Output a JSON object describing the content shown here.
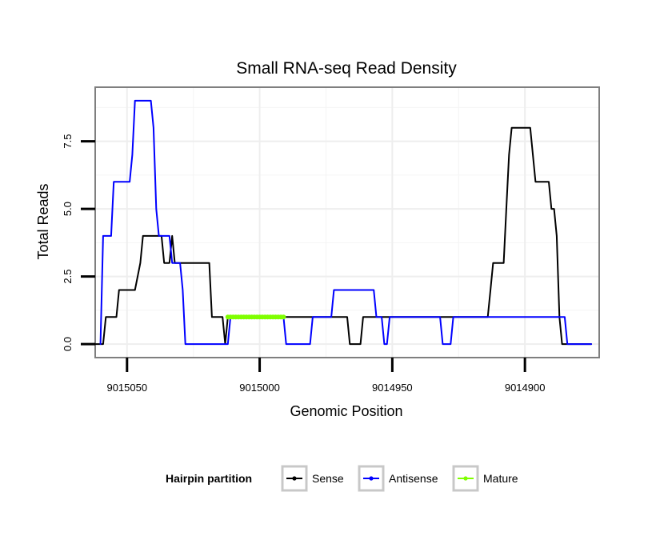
{
  "chart_data": {
    "type": "line",
    "title": "Small RNA-seq Read Density",
    "xlabel": "Genomic Position",
    "ylabel": "Total Reads",
    "x_reversed": true,
    "xlim": [
      9015062,
      9014872
    ],
    "ylim": [
      -0.5,
      9.5
    ],
    "x_ticks": [
      9015050,
      9015000,
      9014950,
      9014900
    ],
    "x_tick_labels": [
      "9015050",
      "9015000",
      "9014950",
      "9014900"
    ],
    "y_ticks": [
      0,
      2.5,
      5,
      7.5
    ],
    "y_tick_labels": [
      "0.0",
      "2.5",
      "5.0",
      "7.5"
    ],
    "legend": {
      "title": "Hairpin partition",
      "position": "bottom",
      "entries": [
        {
          "label": "Sense",
          "color": "#000000"
        },
        {
          "label": "Antisense",
          "color": "#0000ff"
        },
        {
          "label": "Mature",
          "color": "#7fff00"
        }
      ]
    },
    "series": [
      {
        "name": "Sense",
        "color": "#000000",
        "points": [
          [
            9015062,
            0
          ],
          [
            9015059,
            0
          ],
          [
            9015058,
            1
          ],
          [
            9015054,
            1
          ],
          [
            9015053,
            2
          ],
          [
            9015047,
            2
          ],
          [
            9015045,
            3
          ],
          [
            9015044,
            4
          ],
          [
            9015037,
            4
          ],
          [
            9015036,
            3
          ],
          [
            9015034,
            3
          ],
          [
            9015033,
            4
          ],
          [
            9015032,
            3
          ],
          [
            9015019,
            3
          ],
          [
            9015018,
            1
          ],
          [
            9015014,
            1
          ],
          [
            9015013,
            0
          ],
          [
            9015012,
            1
          ],
          [
            9014967,
            1
          ],
          [
            9014966,
            0
          ],
          [
            9014962,
            0
          ],
          [
            9014961,
            1
          ],
          [
            9014914,
            1
          ],
          [
            9014913,
            2
          ],
          [
            9014912,
            3
          ],
          [
            9014908,
            3
          ],
          [
            9014907,
            5
          ],
          [
            9014906,
            7
          ],
          [
            9014905,
            8
          ],
          [
            9014898,
            8
          ],
          [
            9014896,
            6
          ],
          [
            9014891,
            6
          ],
          [
            9014890,
            5
          ],
          [
            9014889,
            5
          ],
          [
            9014888,
            4
          ],
          [
            9014887,
            1
          ],
          [
            9014886,
            0
          ],
          [
            9014875,
            0
          ]
        ]
      },
      {
        "name": "Antisense",
        "color": "#0000ff",
        "points": [
          [
            9015060,
            0
          ],
          [
            9015059,
            4
          ],
          [
            9015056,
            4
          ],
          [
            9015055,
            6
          ],
          [
            9015049,
            6
          ],
          [
            9015048,
            7
          ],
          [
            9015047,
            9
          ],
          [
            9015041,
            9
          ],
          [
            9015040,
            8
          ],
          [
            9015039,
            5
          ],
          [
            9015038,
            4
          ],
          [
            9015034,
            4
          ],
          [
            9015033,
            3
          ],
          [
            9015030,
            3
          ],
          [
            9015029,
            2
          ],
          [
            9015028,
            0
          ],
          [
            9015012,
            0
          ],
          [
            9015011,
            1
          ],
          [
            9014991,
            1
          ],
          [
            9014990,
            0
          ],
          [
            9014981,
            0
          ],
          [
            9014980,
            1
          ],
          [
            9014973,
            1
          ],
          [
            9014972,
            2
          ],
          [
            9014957,
            2
          ],
          [
            9014956,
            1
          ],
          [
            9014954,
            1
          ],
          [
            9014953,
            0
          ],
          [
            9014952,
            0
          ],
          [
            9014951,
            1
          ],
          [
            9014932,
            1
          ],
          [
            9014931,
            0
          ],
          [
            9014928,
            0
          ],
          [
            9014927,
            1
          ],
          [
            9014906,
            1
          ],
          [
            9014905,
            1
          ],
          [
            9014897,
            1
          ],
          [
            9014885,
            1
          ],
          [
            9014884,
            0
          ],
          [
            9014875,
            0
          ]
        ]
      },
      {
        "name": "Mature",
        "color": "#7fff00",
        "points": [
          [
            9015012,
            1
          ],
          [
            9014991,
            1
          ]
        ]
      }
    ]
  }
}
